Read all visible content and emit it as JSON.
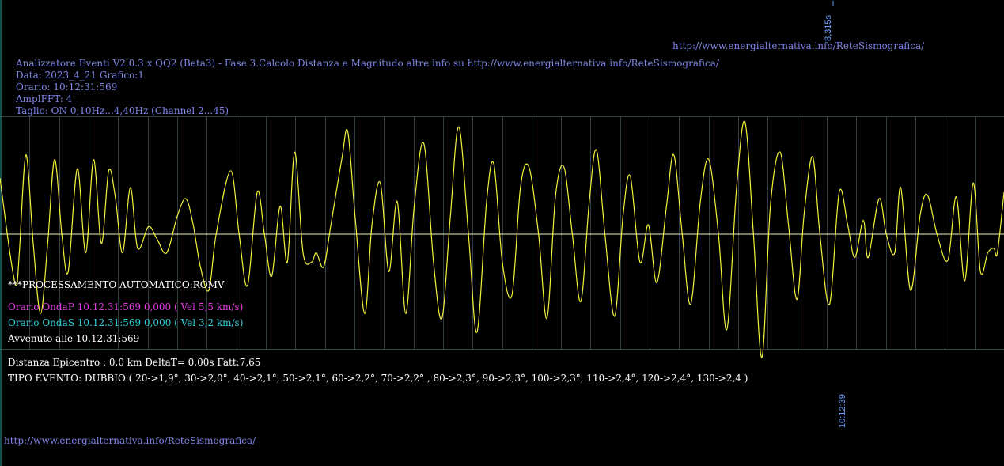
{
  "header": {
    "top_url": "http://www.energialternativa.info/ReteSismografica/",
    "time_scale_label": "8,315s",
    "title_line": "Analizzatore Eventi V2.0.3 x QQ2 (Beta3) - Fase 3.Calcolo Distanza e Magnitudo altre info su http://www.energialternativa.info/ReteSismografica/",
    "data_line": "Data: 2023_4_21 Grafico:1",
    "orario_line": "Orario: 10:12:31:569",
    "ampl_line": "AmplFFT: 4",
    "taglio_line": "Taglio: ON 0,10Hz...4,40Hz       (Channel 2...45)"
  },
  "analysis": {
    "processing": "***PROCESSAMENTO AUTOMATICO:ROMV",
    "onda_p": "Orario OndaP 10.12.31:569  0,000 ( Vel 5,5 km/s)",
    "onda_s": "Orario OndaS 10.12.31:569  0,000 ( Vel 3,2 km/s)",
    "avvenuto": "Avvenuto alle 10.12.31:569",
    "distanza": "Distanza Epicentro : 0,0 km DeltaT= 0,00s  Fatt:7,65",
    "tipo_evento": "TIPO EVENTO: DUBBIO ( 20->1,9°, 30->2,0°, 40->2,1°, 50->2,1°, 60->2,2°, 70->2,2° , 80->2,3°, 90->2,3°, 100->2,3°, 110->2,4°, 120->2,4°, 130->2,4 )"
  },
  "footer": {
    "bottom_url": "http://www.energialternativa.info/ReteSismografica/",
    "end_time_label": "10:12:39"
  },
  "colors": {
    "background": "#000000",
    "trace": "#f2f23a",
    "baseline": "#f4f4c0",
    "grid": "#2f3f3f",
    "text_blue": "#7f86e6",
    "onda_p": "#e03ae0",
    "onda_s": "#2ad0d8"
  },
  "chart_data": {
    "type": "line",
    "title": "",
    "xlabel": "",
    "ylabel": "",
    "x_range": [
      0,
      8.315
    ],
    "grid": "vertical",
    "series": [
      {
        "name": "",
        "points": [
          [
            0.0,
            0.6
          ],
          [
            0.082,
            -0.2
          ],
          [
            0.134,
            -0.55
          ],
          [
            0.16,
            -0.2
          ],
          [
            0.215,
            0.85
          ],
          [
            0.275,
            -0.1
          ],
          [
            0.336,
            -0.85
          ],
          [
            0.395,
            -0.1
          ],
          [
            0.452,
            0.8
          ],
          [
            0.512,
            0.0
          ],
          [
            0.565,
            -0.4
          ],
          [
            0.64,
            0.7
          ],
          [
            0.71,
            -0.2
          ],
          [
            0.775,
            0.8
          ],
          [
            0.84,
            -0.1
          ],
          [
            0.9,
            0.68
          ],
          [
            0.955,
            0.4
          ],
          [
            1.015,
            -0.2
          ],
          [
            1.08,
            0.5
          ],
          [
            1.14,
            -0.15
          ],
          [
            1.23,
            0.08
          ],
          [
            1.3,
            -0.05
          ],
          [
            1.38,
            -0.2
          ],
          [
            1.47,
            0.2
          ],
          [
            1.54,
            0.38
          ],
          [
            1.6,
            0.1
          ],
          [
            1.66,
            -0.35
          ],
          [
            1.73,
            -0.6
          ],
          [
            1.79,
            0.0
          ],
          [
            1.91,
            0.68
          ],
          [
            1.98,
            0.0
          ],
          [
            2.05,
            -0.55
          ],
          [
            2.13,
            0.45
          ],
          [
            2.19,
            0.0
          ],
          [
            2.25,
            -0.45
          ],
          [
            2.32,
            0.3
          ],
          [
            2.38,
            -0.3
          ],
          [
            2.44,
            0.88
          ],
          [
            2.51,
            -0.2
          ],
          [
            2.58,
            -0.3
          ],
          [
            2.62,
            -0.2
          ],
          [
            2.68,
            -0.35
          ],
          [
            2.74,
            0.1
          ],
          [
            2.83,
            0.8
          ],
          [
            2.88,
            1.1
          ],
          [
            2.94,
            0.2
          ],
          [
            3.02,
            -0.85
          ],
          [
            3.08,
            0.1
          ],
          [
            3.15,
            0.55
          ],
          [
            3.22,
            -0.4
          ],
          [
            3.29,
            0.35
          ],
          [
            3.36,
            -0.85
          ],
          [
            3.43,
            0.3
          ],
          [
            3.51,
            0.97
          ],
          [
            3.59,
            -0.3
          ],
          [
            3.66,
            -0.9
          ],
          [
            3.73,
            0.2
          ],
          [
            3.8,
            1.15
          ],
          [
            3.88,
            0.0
          ],
          [
            3.95,
            -1.05
          ],
          [
            4.03,
            0.35
          ],
          [
            4.09,
            0.75
          ],
          [
            4.16,
            -0.3
          ],
          [
            4.24,
            -0.65
          ],
          [
            4.31,
            0.5
          ],
          [
            4.38,
            0.72
          ],
          [
            4.46,
            0.0
          ],
          [
            4.53,
            -0.9
          ],
          [
            4.6,
            0.4
          ],
          [
            4.67,
            0.72
          ],
          [
            4.74,
            0.0
          ],
          [
            4.81,
            -0.72
          ],
          [
            4.88,
            0.35
          ],
          [
            4.94,
            0.9
          ],
          [
            5.01,
            0.0
          ],
          [
            5.09,
            -0.88
          ],
          [
            5.16,
            0.2
          ],
          [
            5.22,
            0.62
          ],
          [
            5.3,
            -0.3
          ],
          [
            5.37,
            0.1
          ],
          [
            5.44,
            -0.52
          ],
          [
            5.52,
            0.3
          ],
          [
            5.58,
            0.85
          ],
          [
            5.65,
            0.0
          ],
          [
            5.72,
            -0.75
          ],
          [
            5.8,
            0.35
          ],
          [
            5.87,
            0.8
          ],
          [
            5.95,
            0.0
          ],
          [
            6.02,
            -1.02
          ],
          [
            6.1,
            0.5
          ],
          [
            6.17,
            1.2
          ],
          [
            6.24,
            0.0
          ],
          [
            6.31,
            -1.32
          ],
          [
            6.38,
            0.3
          ],
          [
            6.46,
            0.88
          ],
          [
            6.53,
            0.1
          ],
          [
            6.6,
            -0.7
          ],
          [
            6.66,
            0.22
          ],
          [
            6.73,
            0.83
          ],
          [
            6.79,
            0.0
          ],
          [
            6.87,
            -0.75
          ],
          [
            6.95,
            0.45
          ],
          [
            7.02,
            0.1
          ],
          [
            7.08,
            -0.25
          ],
          [
            7.15,
            0.15
          ],
          [
            7.19,
            -0.25
          ],
          [
            7.28,
            0.38
          ],
          [
            7.34,
            0.0
          ],
          [
            7.41,
            -0.2
          ],
          [
            7.46,
            0.5
          ],
          [
            7.54,
            -0.6
          ],
          [
            7.62,
            0.2
          ],
          [
            7.68,
            0.42
          ],
          [
            7.76,
            0.0
          ],
          [
            7.85,
            -0.28
          ],
          [
            7.92,
            0.4
          ],
          [
            7.99,
            -0.5
          ],
          [
            8.06,
            0.55
          ],
          [
            8.12,
            -0.4
          ],
          [
            8.18,
            -0.2
          ],
          [
            8.23,
            -0.15
          ],
          [
            8.26,
            -0.2
          ],
          [
            8.315,
            0.45
          ]
        ]
      }
    ]
  }
}
